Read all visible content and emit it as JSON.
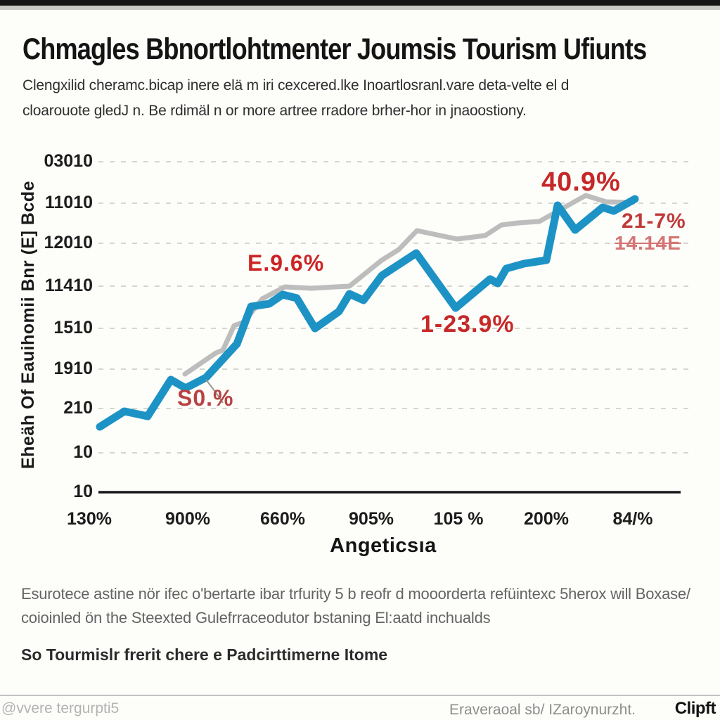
{
  "header": {
    "title": "Chmagles Bbnortlohtmenter Joumsis Tourism Ufiunts",
    "subtitle_line1": "Clengxilid cheramc.bicap inere elä m iri cexcered.lke Inoartlosranl.vare deta-velte el d",
    "subtitle_line2": "cloarouote gledJ n. Be rdimäl n or more artree rradore brher-hor in jnaoostiony."
  },
  "colors": {
    "accent_blue": "#1d93c5",
    "line_gray": "#bdbdbd",
    "annotation_red": "#c62828",
    "grid_gray": "#d6d6cf"
  },
  "chart_data": {
    "type": "line",
    "title": "Chmagles Bbnortlohtmenter Joumsis Tourism Ufiunts",
    "xlabel": "Angeticsıa",
    "ylabel": "Eheäh Of Eauihomii Bnr (E] Bcde",
    "y_ticks": [
      "03010",
      "11010",
      "12010",
      "11410",
      "1510",
      "1910",
      "210",
      "10",
      "10"
    ],
    "y_tick_ys": [
      230,
      289,
      346,
      407,
      467,
      525,
      581,
      644,
      700
    ],
    "x_ticks": [
      "130%",
      "900%",
      "660%",
      "905%",
      "105 %",
      "200%",
      "84/%"
    ],
    "x_tick_centers": [
      127,
      267,
      402,
      528,
      652,
      777,
      900
    ],
    "grid": true,
    "legend": "none",
    "plot": {
      "x1": 140,
      "x2": 985,
      "axis_y": 700,
      "axis_x2": 968,
      "gridline_ys": [
        230,
        289,
        346,
        407,
        467,
        525,
        581,
        644
      ]
    },
    "series": [
      {
        "name": "blue-line",
        "color": "#1d93c5",
        "width": 11,
        "points": [
          [
            142,
            607
          ],
          [
            177,
            585
          ],
          [
            210,
            592
          ],
          [
            243,
            540
          ],
          [
            264,
            552
          ],
          [
            293,
            537
          ],
          [
            337,
            489
          ],
          [
            357,
            436
          ],
          [
            383,
            432
          ],
          [
            402,
            419
          ],
          [
            422,
            424
          ],
          [
            448,
            467
          ],
          [
            482,
            443
          ],
          [
            497,
            418
          ],
          [
            517,
            427
          ],
          [
            543,
            392
          ],
          [
            592,
            360
          ],
          [
            648,
            438
          ],
          [
            697,
            397
          ],
          [
            708,
            403
          ],
          [
            720,
            382
          ],
          [
            745,
            375
          ],
          [
            777,
            370
          ],
          [
            793,
            292
          ],
          [
            818,
            327
          ],
          [
            857,
            295
          ],
          [
            873,
            300
          ],
          [
            903,
            283
          ]
        ]
      },
      {
        "name": "gray-line",
        "color": "#bdbdbd",
        "width": 7,
        "points": [
          [
            263,
            532
          ],
          [
            307,
            502
          ],
          [
            317,
            498
          ],
          [
            333,
            463
          ],
          [
            347,
            458
          ],
          [
            373,
            425
          ],
          [
            405,
            408
          ],
          [
            443,
            410
          ],
          [
            477,
            408
          ],
          [
            497,
            407
          ],
          [
            543,
            370
          ],
          [
            567,
            355
          ],
          [
            593,
            328
          ],
          [
            650,
            340
          ],
          [
            690,
            335
          ],
          [
            713,
            320
          ],
          [
            737,
            317
          ],
          [
            767,
            315
          ],
          [
            833,
            278
          ],
          [
            862,
            287
          ],
          [
            900,
            288
          ]
        ]
      }
    ],
    "arrow": {
      "color": "#9a9a9a",
      "points": [
        [
          293,
          540
        ],
        [
          306,
          557
        ],
        [
          317,
          573
        ]
      ]
    },
    "annotations": [
      {
        "text": "S0.%",
        "x": 252,
        "y": 548,
        "color": "#b84343",
        "size": 32,
        "strike": false
      },
      {
        "text": "E.9.6%",
        "x": 352,
        "y": 356,
        "color": "#cc2424",
        "size": 32,
        "strike": false
      },
      {
        "text": "1-23.9%",
        "x": 598,
        "y": 442,
        "color": "#c62828",
        "size": 34,
        "strike": false
      },
      {
        "text": "40.9%",
        "x": 770,
        "y": 238,
        "color": "#c62828",
        "size": 38,
        "strike": false
      },
      {
        "text": "21-7%",
        "x": 884,
        "y": 298,
        "color": "#c03a3a",
        "size": 30,
        "strike": false
      },
      {
        "text": "14.14E",
        "x": 874,
        "y": 330,
        "color": "#d47575",
        "size": 28,
        "strike": true
      }
    ]
  },
  "footer": {
    "note1": "Esurotece astine nör ifec o'bertarte ibar trfurity 5 b reofr d mooorderta refüintexc 5herox will Boxase/",
    "note2": "coioinled ön the Steexted Gulefrraceodutor bstaning El:aatd inchualds",
    "source": "So Tourmislr frerit chere e Padcirttimerne Itome"
  },
  "bottombar": {
    "handle": "@vvere tergurpti5",
    "credit": "Eraveraoal sb/ IZaroynurzht.",
    "brand": "Clipft"
  }
}
